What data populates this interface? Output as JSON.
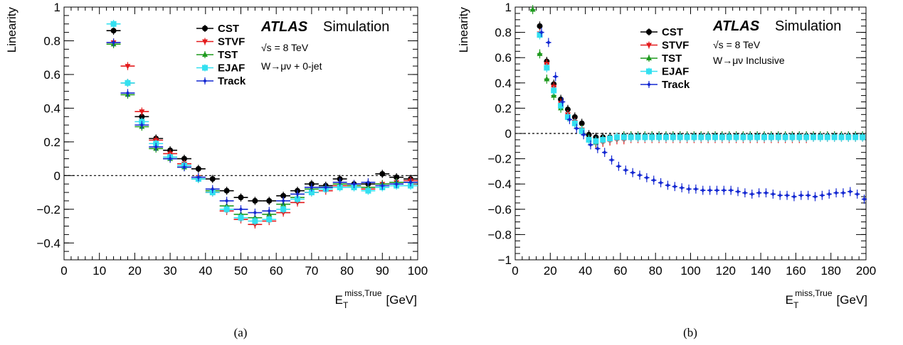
{
  "colors": {
    "CST": "#000000",
    "STVF": "#e31a1c",
    "TST": "#1f9a1f",
    "EJAF": "#33e0f0",
    "Track": "#1428d2"
  },
  "chart_data": [
    {
      "type": "scatter",
      "panel": "a",
      "caption": "(a)",
      "ylabel": "Linearity",
      "xlabel_main": "E",
      "xlabel_sub": "T",
      "xlabel_sup": "miss,True",
      "xlabel_unit": "[GeV]",
      "xlim": [
        0,
        100
      ],
      "ylim": [
        -0.5,
        1.0
      ],
      "xticks": [
        0,
        10,
        20,
        30,
        40,
        50,
        60,
        70,
        80,
        90,
        100
      ],
      "yticks": [
        -0.4,
        -0.2,
        0,
        0.2,
        0.4,
        0.6,
        0.8,
        1
      ],
      "ytick_labels": [
        "−0.4",
        "−0.2",
        "0",
        "0.2",
        "0.4",
        "0.6",
        "0.8",
        "1"
      ],
      "xtick_labels": [
        "0",
        "10",
        "20",
        "30",
        "40",
        "50",
        "60",
        "70",
        "80",
        "90",
        "100"
      ],
      "zero_line": true,
      "atlas_label": "ATLAS",
      "atlas_suffix": "Simulation",
      "energy_label": "√s = 8 TeV",
      "process_label": "W→μν + 0-jet",
      "legend": [
        "CST",
        "STVF",
        "TST",
        "EJAF",
        "Track"
      ],
      "bin_width": 4,
      "x": [
        14,
        18,
        22,
        26,
        30,
        34,
        38,
        42,
        46,
        50,
        54,
        58,
        62,
        66,
        70,
        74,
        78,
        82,
        86,
        90,
        94,
        98
      ],
      "series": [
        {
          "name": "CST",
          "marker": "circle",
          "values": [
            0.86,
            0.55,
            0.35,
            0.22,
            0.15,
            0.1,
            0.04,
            -0.02,
            -0.09,
            -0.13,
            -0.15,
            -0.15,
            -0.12,
            -0.09,
            -0.05,
            -0.06,
            -0.02,
            -0.05,
            -0.05,
            0.01,
            -0.01,
            -0.02
          ]
        },
        {
          "name": "STVF",
          "marker": "triangle-down",
          "values": [
            0.79,
            0.65,
            0.38,
            0.21,
            0.13,
            0.07,
            -0.01,
            -0.1,
            -0.21,
            -0.26,
            -0.29,
            -0.27,
            -0.22,
            -0.16,
            -0.1,
            -0.09,
            -0.06,
            -0.06,
            -0.08,
            -0.05,
            -0.04,
            -0.03
          ]
        },
        {
          "name": "TST",
          "marker": "triangle-up",
          "values": [
            0.78,
            0.48,
            0.29,
            0.16,
            0.1,
            0.05,
            -0.02,
            -0.09,
            -0.18,
            -0.23,
            -0.25,
            -0.23,
            -0.17,
            -0.13,
            -0.08,
            -0.07,
            -0.05,
            -0.06,
            -0.07,
            -0.05,
            -0.04,
            -0.04
          ]
        },
        {
          "name": "EJAF",
          "marker": "square",
          "values": [
            0.9,
            0.55,
            0.32,
            0.19,
            0.11,
            0.06,
            -0.02,
            -0.1,
            -0.2,
            -0.25,
            -0.27,
            -0.26,
            -0.2,
            -0.14,
            -0.1,
            -0.08,
            -0.07,
            -0.07,
            -0.09,
            -0.07,
            -0.06,
            -0.06
          ]
        },
        {
          "name": "Track",
          "marker": "diamond",
          "values": [
            0.79,
            0.49,
            0.3,
            0.17,
            0.1,
            0.05,
            -0.01,
            -0.08,
            -0.15,
            -0.2,
            -0.22,
            -0.21,
            -0.15,
            -0.11,
            -0.07,
            -0.07,
            -0.04,
            -0.05,
            -0.04,
            -0.06,
            -0.05,
            -0.04
          ]
        }
      ]
    },
    {
      "type": "scatter",
      "panel": "b",
      "caption": "(b)",
      "ylabel": "Linearity",
      "xlabel_main": "E",
      "xlabel_sub": "T",
      "xlabel_sup": "miss,True",
      "xlabel_unit": "[GeV]",
      "xlim": [
        0,
        200
      ],
      "ylim": [
        -1.0,
        1.0
      ],
      "xticks": [
        0,
        20,
        40,
        60,
        80,
        100,
        120,
        140,
        160,
        180,
        200
      ],
      "yticks": [
        -1,
        -0.8,
        -0.6,
        -0.4,
        -0.2,
        0,
        0.2,
        0.4,
        0.6,
        0.8,
        1
      ],
      "ytick_labels": [
        "−1",
        "−0.8",
        "−0.6",
        "−0.4",
        "−0.2",
        "0",
        "0.2",
        "0.4",
        "0.6",
        "0.8",
        "1"
      ],
      "xtick_labels": [
        "0",
        "20",
        "40",
        "60",
        "80",
        "100",
        "120",
        "140",
        "160",
        "180",
        "200"
      ],
      "zero_line": true,
      "atlas_label": "ATLAS",
      "atlas_suffix": "Simulation",
      "energy_label": "√s = 8 TeV",
      "process_label": "W→μν Inclusive",
      "legend": [
        "CST",
        "STVF",
        "TST",
        "EJAF",
        "Track"
      ],
      "bin_width": 3,
      "series": [
        {
          "name": "CST",
          "marker": "circle",
          "x": [
            14,
            18,
            22,
            26,
            30,
            34,
            38,
            42,
            46,
            50,
            54,
            58,
            62,
            66,
            70,
            74,
            78,
            82,
            86,
            90,
            94,
            98,
            102,
            106,
            110,
            114,
            118,
            122,
            126,
            130,
            134,
            138,
            142,
            146,
            150,
            154,
            158,
            162,
            166,
            170,
            174,
            178,
            182,
            186,
            190,
            194,
            198
          ],
          "values": [
            0.85,
            0.57,
            0.39,
            0.27,
            0.19,
            0.13,
            0.08,
            -0.01,
            -0.03,
            -0.03,
            -0.03,
            -0.03,
            -0.02,
            -0.02,
            -0.02,
            -0.02,
            -0.02,
            -0.02,
            -0.02,
            -0.02,
            -0.02,
            -0.02,
            -0.02,
            -0.02,
            -0.02,
            -0.02,
            -0.02,
            -0.02,
            -0.02,
            -0.02,
            -0.02,
            -0.02,
            -0.02,
            -0.02,
            -0.02,
            -0.02,
            -0.02,
            -0.02,
            -0.02,
            -0.02,
            -0.02,
            -0.02,
            -0.02,
            -0.02,
            -0.02,
            -0.02,
            -0.02
          ]
        },
        {
          "name": "STVF",
          "marker": "triangle-down",
          "x": [
            14,
            18,
            22,
            26,
            30,
            34,
            38,
            42,
            46,
            50,
            54,
            58,
            62,
            66,
            70,
            74,
            78,
            82,
            86,
            90,
            94,
            98,
            102,
            106,
            110,
            114,
            118,
            122,
            126,
            130,
            134,
            138,
            142,
            146,
            150,
            154,
            158,
            162,
            166,
            170,
            174,
            178,
            182,
            186,
            190,
            194,
            198
          ],
          "values": [
            0.79,
            0.55,
            0.37,
            0.24,
            0.15,
            0.09,
            0.03,
            -0.05,
            -0.08,
            -0.07,
            -0.06,
            -0.05,
            -0.05,
            -0.04,
            -0.04,
            -0.04,
            -0.04,
            -0.04,
            -0.04,
            -0.04,
            -0.04,
            -0.04,
            -0.04,
            -0.04,
            -0.04,
            -0.04,
            -0.04,
            -0.04,
            -0.04,
            -0.04,
            -0.04,
            -0.04,
            -0.04,
            -0.04,
            -0.04,
            -0.04,
            -0.04,
            -0.04,
            -0.04,
            -0.03,
            -0.03,
            -0.03,
            -0.03,
            -0.03,
            -0.03,
            -0.03,
            -0.03
          ]
        },
        {
          "name": "TST",
          "marker": "triangle-up",
          "x": [
            10,
            14,
            18,
            22,
            26,
            30,
            34,
            38,
            42,
            46,
            50,
            54,
            58,
            62,
            66,
            70,
            74,
            78,
            82,
            86,
            90,
            94,
            98,
            102,
            106,
            110,
            114,
            118,
            122,
            126,
            130,
            134,
            138,
            142,
            146,
            150,
            154,
            158,
            162,
            166,
            170,
            174,
            178,
            182,
            186,
            190,
            194,
            198
          ],
          "values": [
            0.98,
            0.63,
            0.43,
            0.3,
            0.2,
            0.13,
            0.08,
            0.03,
            -0.04,
            -0.07,
            -0.05,
            -0.04,
            -0.03,
            -0.02,
            -0.02,
            -0.02,
            -0.02,
            -0.02,
            -0.02,
            -0.02,
            -0.02,
            -0.02,
            -0.02,
            -0.02,
            -0.02,
            -0.02,
            -0.02,
            -0.02,
            -0.02,
            -0.02,
            -0.02,
            -0.02,
            -0.02,
            -0.02,
            -0.02,
            -0.02,
            -0.02,
            -0.02,
            -0.02,
            -0.02,
            -0.02,
            -0.02,
            -0.02,
            -0.02,
            -0.02,
            -0.02,
            -0.02,
            -0.02
          ]
        },
        {
          "name": "EJAF",
          "marker": "square",
          "x": [
            14,
            18,
            22,
            26,
            30,
            34,
            38,
            42,
            46,
            50,
            54,
            58,
            62,
            66,
            70,
            74,
            78,
            82,
            86,
            90,
            94,
            98,
            102,
            106,
            110,
            114,
            118,
            122,
            126,
            130,
            134,
            138,
            142,
            146,
            150,
            154,
            158,
            162,
            166,
            170,
            174,
            178,
            182,
            186,
            190,
            194,
            198
          ],
          "values": [
            0.78,
            0.52,
            0.34,
            0.22,
            0.13,
            0.08,
            0.02,
            -0.05,
            -0.06,
            -0.05,
            -0.04,
            -0.03,
            -0.03,
            -0.03,
            -0.03,
            -0.03,
            -0.03,
            -0.03,
            -0.03,
            -0.03,
            -0.03,
            -0.03,
            -0.03,
            -0.03,
            -0.03,
            -0.03,
            -0.03,
            -0.03,
            -0.03,
            -0.03,
            -0.03,
            -0.03,
            -0.03,
            -0.03,
            -0.03,
            -0.03,
            -0.03,
            -0.03,
            -0.03,
            -0.03,
            -0.03,
            -0.03,
            -0.03,
            -0.03,
            -0.03,
            -0.03,
            -0.03
          ]
        },
        {
          "name": "Track",
          "marker": "diamond",
          "x": [
            15,
            19,
            23,
            27,
            31,
            35,
            39,
            43,
            47,
            51,
            55,
            59,
            63,
            67,
            71,
            75,
            79,
            83,
            87,
            91,
            95,
            99,
            103,
            107,
            111,
            115,
            119,
            123,
            127,
            131,
            135,
            139,
            143,
            147,
            151,
            155,
            159,
            163,
            167,
            171,
            175,
            179,
            183,
            187,
            191,
            195,
            199
          ],
          "values": [
            0.8,
            0.72,
            0.45,
            0.25,
            0.11,
            0.04,
            -0.01,
            -0.09,
            -0.12,
            -0.15,
            -0.21,
            -0.26,
            -0.29,
            -0.31,
            -0.33,
            -0.35,
            -0.37,
            -0.39,
            -0.41,
            -0.42,
            -0.43,
            -0.44,
            -0.44,
            -0.45,
            -0.45,
            -0.45,
            -0.45,
            -0.45,
            -0.46,
            -0.47,
            -0.48,
            -0.47,
            -0.47,
            -0.48,
            -0.49,
            -0.49,
            -0.5,
            -0.49,
            -0.49,
            -0.5,
            -0.49,
            -0.48,
            -0.47,
            -0.47,
            -0.46,
            -0.48,
            -0.52
          ]
        }
      ]
    }
  ]
}
